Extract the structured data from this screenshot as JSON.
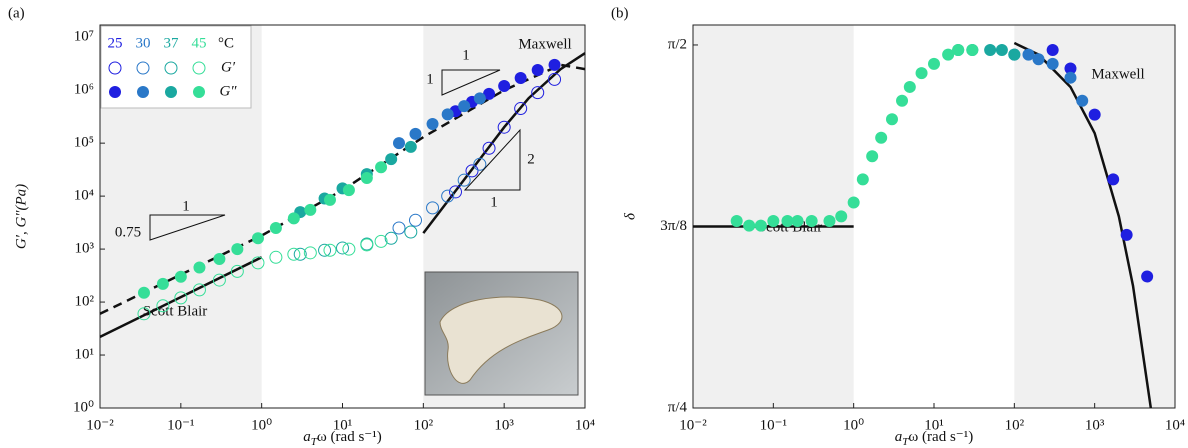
{
  "chart_data": [
    {
      "type": "scatter",
      "panel_label": "(a)",
      "log_x": true,
      "log_y": true,
      "x_label": {
        "symbol": "a",
        "subscript": "T",
        "rest": "ω (rad s⁻¹)"
      },
      "y_label": "G′, G″(Pa)",
      "xlim": [
        0.01,
        10000
      ],
      "ylim": [
        1,
        17000000
      ],
      "xticks": [
        {
          "value": 0.01,
          "label": "10⁻²"
        },
        {
          "value": 0.1,
          "label": "10⁻¹"
        },
        {
          "value": 1,
          "label": "10⁰"
        },
        {
          "value": 10,
          "label": "10¹"
        },
        {
          "value": 100,
          "label": "10²"
        },
        {
          "value": 1000,
          "label": "10³"
        },
        {
          "value": 10000,
          "label": "10⁴"
        }
      ],
      "yticks": [
        {
          "value": 1,
          "label": "10⁰"
        },
        {
          "value": 10,
          "label": "10¹"
        },
        {
          "value": 100,
          "label": "10²"
        },
        {
          "value": 1000,
          "label": "10³"
        },
        {
          "value": 10000,
          "label": "10⁴"
        },
        {
          "value": 100000,
          "label": "10⁵"
        },
        {
          "value": 1000000,
          "label": "10⁶"
        },
        {
          "value": 10000000,
          "label": "10⁷"
        }
      ],
      "shaded": [
        [
          0.01,
          1
        ],
        [
          100,
          10000
        ]
      ],
      "shade_color": "#f0f0f0",
      "legend": {
        "unit": "°C",
        "labels": [
          "G′",
          "G″"
        ]
      },
      "slope_labels": [
        "1",
        "0.75",
        "1",
        "1",
        "2",
        "1"
      ],
      "lines": [
        {
          "label": "Scott Blair",
          "dash": false,
          "x": [
            0.01,
            1
          ],
          "values": [
            22,
            700
          ]
        },
        {
          "dash": true,
          "x": [
            0.01,
            0.1,
            1,
            10,
            100,
            1000,
            5000,
            10000
          ],
          "values": [
            60,
            330,
            1800,
            13000,
            130000,
            1000000,
            3000000,
            2500000
          ]
        },
        {
          "label": "Maxwell",
          "dash": false,
          "x": [
            100,
            200,
            500,
            1000,
            2000,
            5000,
            10000
          ],
          "values": [
            2000,
            8000,
            50000,
            200000,
            700000,
            2500000,
            5000000
          ]
        }
      ],
      "series": [
        {
          "name": "25",
          "color": "#1f1fe0",
          "x": [
            250,
            400,
            650,
            1000,
            1600,
            2600,
            4200
          ],
          "storage": [
            12000,
            30000,
            80000,
            200000,
            450000,
            900000,
            1600000
          ],
          "loss": [
            400000,
            600000,
            850000,
            1200000,
            1700000,
            2400000,
            3000000
          ]
        },
        {
          "name": "30",
          "color": "#2a78c8",
          "x": [
            50,
            80,
            130,
            200,
            320,
            500
          ],
          "storage": [
            2500,
            3500,
            6000,
            10000,
            20000,
            40000
          ],
          "loss": [
            100000,
            150000,
            230000,
            350000,
            500000,
            700000
          ]
        },
        {
          "name": "37",
          "color": "#1aa8a0",
          "x": [
            3,
            6,
            10,
            20,
            40,
            70
          ],
          "storage": [
            800,
            950,
            1050,
            1250,
            1600,
            2100
          ],
          "loss": [
            5000,
            9000,
            14000,
            26000,
            50000,
            85000
          ]
        },
        {
          "name": "45",
          "color": "#35de98",
          "x": [
            0.035,
            0.06,
            0.1,
            0.17,
            0.3,
            0.5,
            0.9,
            1.5,
            2.5,
            4,
            7,
            12,
            20,
            30
          ],
          "storage": [
            60,
            85,
            120,
            170,
            260,
            380,
            550,
            700,
            800,
            850,
            950,
            1000,
            1200,
            1400
          ],
          "loss": [
            150,
            220,
            300,
            450,
            650,
            1000,
            1600,
            2500,
            3800,
            5500,
            8500,
            13000,
            22000,
            35000
          ]
        }
      ]
    },
    {
      "type": "scatter",
      "panel_label": "(b)",
      "log_x": true,
      "log_y": false,
      "x_label": {
        "symbol": "a",
        "subscript": "T",
        "rest": "ω (rad s⁻¹)"
      },
      "y_label": "δ",
      "xlim": [
        0.01,
        10000
      ],
      "ylim": [
        0.7854,
        1.614
      ],
      "xticks": [
        {
          "value": 0.01,
          "label": "10⁻²"
        },
        {
          "value": 0.1,
          "label": "10⁻¹"
        },
        {
          "value": 1,
          "label": "10⁰"
        },
        {
          "value": 10,
          "label": "10¹"
        },
        {
          "value": 100,
          "label": "10²"
        },
        {
          "value": 1000,
          "label": "10³"
        },
        {
          "value": 10000,
          "label": "10⁴"
        }
      ],
      "yticks": [
        {
          "value": 0.7854,
          "label": "π/4"
        },
        {
          "value": 1.1781,
          "label": "3π/8"
        },
        {
          "value": 1.5708,
          "label": "π/2"
        }
      ],
      "shaded": [
        [
          0.01,
          1
        ],
        [
          100,
          10000
        ]
      ],
      "shade_color": "#f0f0f0",
      "lines": [
        {
          "label": "Scott Blair",
          "dash": false,
          "x": [
            0.01,
            1
          ],
          "values": [
            1.1781,
            1.1781
          ]
        },
        {
          "label": "Maxwell",
          "dash": false,
          "x": [
            100,
            200,
            500,
            1000,
            2000,
            3000,
            5000
          ],
          "values": [
            1.575,
            1.55,
            1.48,
            1.38,
            1.2,
            1.05,
            0.7854
          ]
        }
      ],
      "series": [
        {
          "name": "25",
          "color": "#1f1fe0",
          "x": [
            300,
            500,
            1000,
            1700,
            2500,
            4500
          ],
          "values": [
            1.56,
            1.52,
            1.42,
            1.28,
            1.16,
            1.07
          ]
        },
        {
          "name": "30",
          "color": "#2a78c8",
          "x": [
            100,
            150,
            200,
            300,
            500,
            700
          ],
          "values": [
            1.55,
            1.55,
            1.54,
            1.53,
            1.5,
            1.45
          ]
        },
        {
          "name": "37",
          "color": "#1aa8a0",
          "x": [
            20,
            30,
            50,
            70,
            100
          ],
          "values": [
            1.56,
            1.56,
            1.56,
            1.56,
            1.55
          ]
        },
        {
          "name": "45",
          "color": "#35de98",
          "x": [
            0.035,
            0.05,
            0.07,
            0.1,
            0.15,
            0.2,
            0.3,
            0.5,
            0.7,
            1,
            1.3,
            1.7,
            2.2,
            3,
            4,
            5,
            7,
            10,
            15,
            20,
            30
          ],
          "values": [
            1.19,
            1.18,
            1.18,
            1.19,
            1.19,
            1.19,
            1.19,
            1.19,
            1.2,
            1.23,
            1.28,
            1.33,
            1.37,
            1.41,
            1.45,
            1.48,
            1.51,
            1.53,
            1.55,
            1.56,
            1.56
          ]
        }
      ]
    }
  ]
}
